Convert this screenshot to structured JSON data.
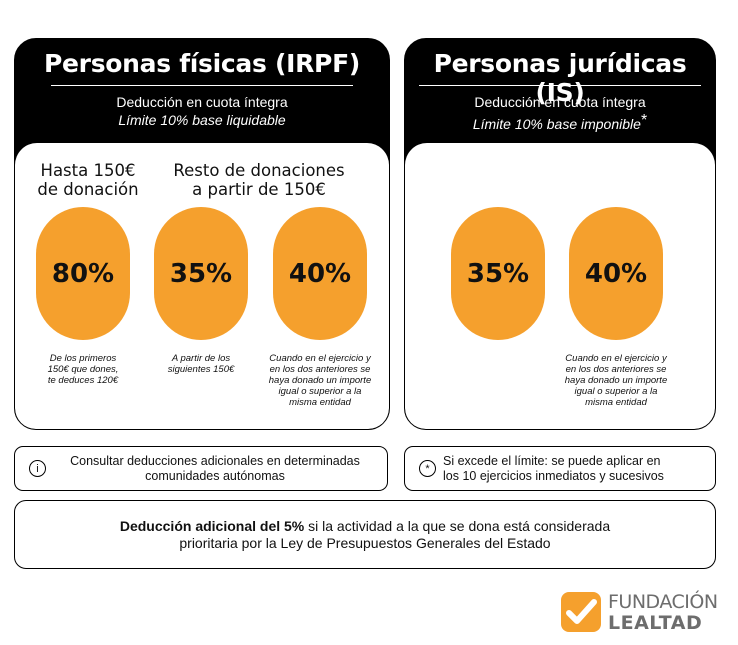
{
  "irpf": {
    "title": "Personas físicas (IRPF)",
    "subtitle": "Deducción en cuota íntegra",
    "limit": "Límite 10% base liquidable",
    "col1_heading_line1": "Hasta 150€",
    "col1_heading_line2": "de donación",
    "col2_heading_line1": "Resto de donaciones",
    "col2_heading_line2": "a partir de 150€",
    "rates": [
      {
        "value": "80%",
        "note_lines": [
          "De los primeros",
          "150€ que dones,",
          "te deduces 120€"
        ]
      },
      {
        "value": "35%",
        "note_lines": [
          "A partir de los",
          "siguientes 150€"
        ]
      },
      {
        "value": "40%",
        "note_lines": [
          "Cuando en el ejercicio y",
          "en los dos anteriores se",
          "haya donado un importe",
          "igual o superior a la",
          "misma entidad"
        ]
      }
    ]
  },
  "is": {
    "title": "Personas jurídicas (IS)",
    "subtitle": "Deducción en cuota íntegra",
    "limit": "Límite 10% base imponible",
    "limit_mark": "*",
    "rates": [
      {
        "value": "35%"
      },
      {
        "value": "40%",
        "note_lines": [
          "Cuando en el ejercicio y",
          "en los dos anteriores se",
          "haya donado un importe",
          "igual o superior a la",
          "misma entidad"
        ]
      }
    ]
  },
  "info_left": {
    "icon": "i",
    "line1": "Consultar deducciones adicionales en determinadas",
    "line2": "comunidades autónomas"
  },
  "info_right": {
    "icon": "*",
    "line1": "Si excede el límite: se puede aplicar en",
    "line2": "los 10 ejercicios inmediatos y sucesivos"
  },
  "bottom": {
    "bold": "Deducción adicional del 5%",
    "rest1": " si la actividad a la que se dona está considerada",
    "line2": "prioritaria por la Ley de Presupuestos Generales del Estado"
  },
  "logo": {
    "line1": "FUNDACIÓN",
    "line2": "LEALTAD",
    "accent_color": "#f5a02d"
  },
  "colors": {
    "orange": "#f5a02d",
    "black": "#000000"
  }
}
